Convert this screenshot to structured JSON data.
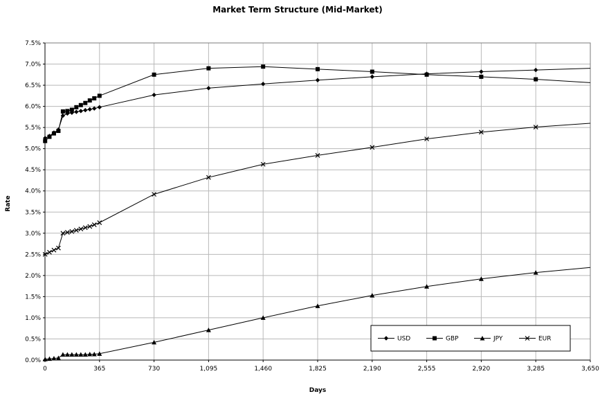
{
  "chart_data": {
    "type": "line",
    "title": "Market Term Structure (Mid-Market)",
    "xlabel": "Days",
    "ylabel": "Rate",
    "xlim": [
      0,
      3650
    ],
    "ylim": [
      0,
      0.075
    ],
    "x_ticks": [
      0,
      365,
      730,
      1095,
      1460,
      1825,
      2190,
      2555,
      2920,
      3285,
      3650
    ],
    "x_tick_labels": [
      "0",
      "365",
      "730",
      "1,095",
      "1,460",
      "1,825",
      "2,190",
      "2,555",
      "2,920",
      "3,285",
      "3,650"
    ],
    "y_ticks": [
      0,
      0.005,
      0.01,
      0.015,
      0.02,
      0.025,
      0.03,
      0.035,
      0.04,
      0.045,
      0.05,
      0.055,
      0.06,
      0.065,
      0.07,
      0.075
    ],
    "y_tick_labels": [
      "0.0%",
      "0.5%",
      "1.0%",
      "1.5%",
      "2.0%",
      "2.5%",
      "3.0%",
      "3.5%",
      "4.0%",
      "4.5%",
      "5.0%",
      "5.5%",
      "6.0%",
      "6.5%",
      "7.0%",
      "7.5%"
    ],
    "grid": true,
    "legend_position": "bottom-right",
    "series": [
      {
        "name": "USD",
        "marker": "diamond",
        "x": [
          1,
          30,
          60,
          90,
          120,
          150,
          180,
          210,
          240,
          270,
          300,
          330,
          365,
          730,
          1095,
          1460,
          1825,
          2190,
          2555,
          2920,
          3285,
          3650
        ],
        "y": [
          0.0525,
          0.053,
          0.0538,
          0.0545,
          0.0578,
          0.0583,
          0.0585,
          0.0587,
          0.0589,
          0.0591,
          0.0593,
          0.0595,
          0.0598,
          0.0627,
          0.0643,
          0.0653,
          0.0662,
          0.067,
          0.0677,
          0.0682,
          0.0686,
          0.069
        ],
        "markers_to": 3285
      },
      {
        "name": "GBP",
        "marker": "square",
        "x": [
          1,
          30,
          60,
          90,
          120,
          150,
          180,
          210,
          240,
          270,
          300,
          330,
          365,
          730,
          1095,
          1460,
          1825,
          2190,
          2555,
          2920,
          3285,
          3650
        ],
        "y": [
          0.0518,
          0.0528,
          0.0536,
          0.0542,
          0.0588,
          0.0589,
          0.0592,
          0.0598,
          0.0603,
          0.0608,
          0.0614,
          0.0619,
          0.0625,
          0.0675,
          0.069,
          0.0694,
          0.0688,
          0.0682,
          0.0675,
          0.067,
          0.0664,
          0.0656
        ],
        "markers_to": 3285
      },
      {
        "name": "JPY",
        "marker": "triangle",
        "x": [
          1,
          30,
          60,
          90,
          120,
          150,
          180,
          210,
          240,
          270,
          300,
          330,
          365,
          730,
          1095,
          1460,
          1825,
          2190,
          2555,
          2920,
          3285,
          3650
        ],
        "y": [
          0.0002,
          0.0003,
          0.0004,
          0.0005,
          0.0013,
          0.0013,
          0.0013,
          0.0013,
          0.0013,
          0.0013,
          0.0014,
          0.0014,
          0.0015,
          0.0042,
          0.0071,
          0.01,
          0.0128,
          0.0153,
          0.0174,
          0.0192,
          0.0207,
          0.0219
        ],
        "markers_to": 3285
      },
      {
        "name": "EUR",
        "marker": "x",
        "x": [
          1,
          30,
          60,
          90,
          120,
          150,
          180,
          210,
          240,
          270,
          300,
          330,
          365,
          730,
          1095,
          1460,
          1825,
          2190,
          2555,
          2920,
          3285,
          3650
        ],
        "y": [
          0.025,
          0.0255,
          0.026,
          0.0265,
          0.03,
          0.0302,
          0.0304,
          0.0307,
          0.031,
          0.0313,
          0.0316,
          0.032,
          0.0325,
          0.0392,
          0.0432,
          0.0463,
          0.0484,
          0.0503,
          0.0523,
          0.0539,
          0.0551,
          0.056
        ],
        "markers_to": 3285
      }
    ]
  }
}
